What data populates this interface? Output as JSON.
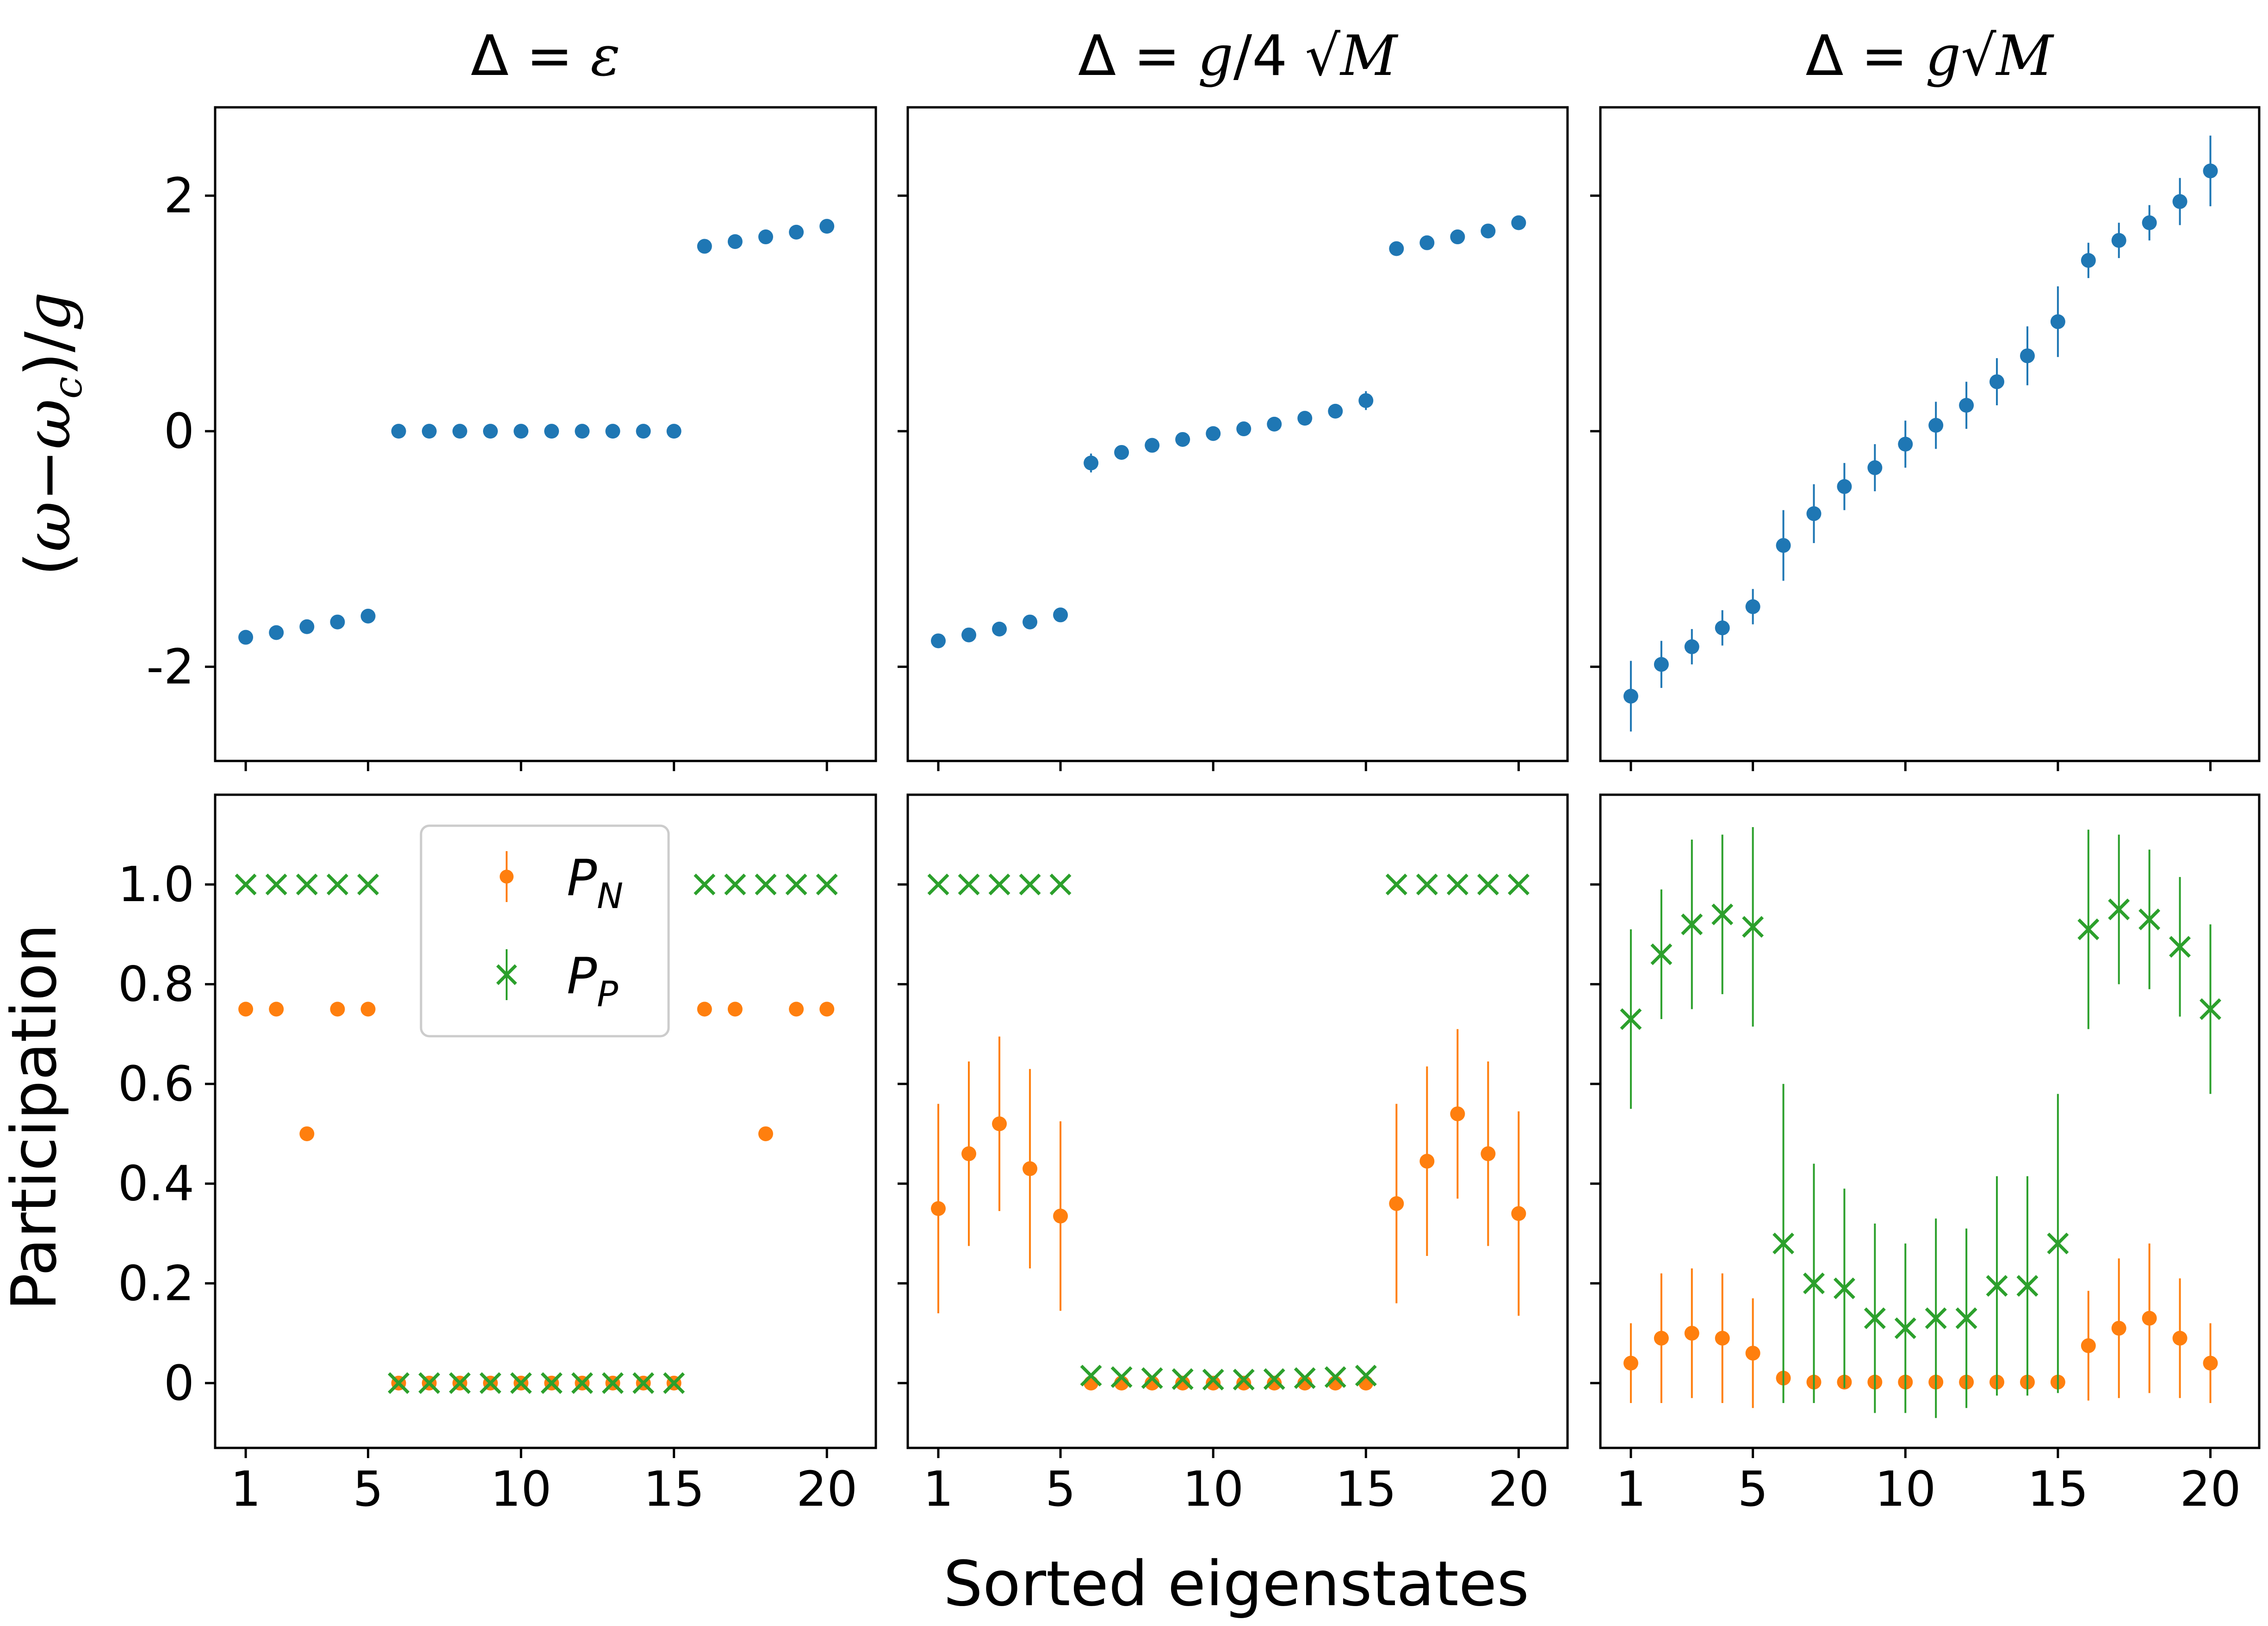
{
  "colors": {
    "blue": "#1f77b4",
    "orange": "#ff7f0e",
    "green": "#2ca02c"
  },
  "figure": {
    "xlabel": "Sorted eigenstates",
    "ylabel_top": "(ω−ω_c)/g",
    "ylabel_bottom": "Participation",
    "column_titles": [
      "Δ = ε",
      "Δ = (g/4)√M",
      "Δ = g√M"
    ],
    "x_ticks": [
      1,
      5,
      10,
      15,
      20
    ],
    "top_y_ticks": [
      2,
      0,
      -2
    ],
    "bottom_y_ticks": [
      "1.0",
      "0.8",
      "0.6",
      "0.4",
      "0.2",
      "0"
    ],
    "legend": [
      "P_N",
      "P_P"
    ]
  },
  "chart_data": [
    {
      "type": "scatter",
      "panel": "top-1",
      "x": [
        1,
        2,
        3,
        4,
        5,
        6,
        7,
        8,
        9,
        10,
        11,
        12,
        13,
        14,
        15,
        16,
        17,
        18,
        19,
        20
      ],
      "y": [
        -1.75,
        -1.71,
        -1.66,
        -1.62,
        -1.57,
        0,
        0,
        0,
        0,
        0,
        0,
        0,
        0,
        0,
        0,
        1.57,
        1.61,
        1.65,
        1.69,
        1.74
      ],
      "err": [
        0,
        0,
        0,
        0,
        0,
        0,
        0,
        0,
        0,
        0,
        0,
        0,
        0,
        0,
        0,
        0,
        0,
        0,
        0,
        0
      ],
      "ylim": [
        -2.8,
        2.75
      ],
      "xlim": [
        0,
        21.6
      ]
    },
    {
      "type": "scatter",
      "panel": "top-2",
      "x": [
        1,
        2,
        3,
        4,
        5,
        6,
        7,
        8,
        9,
        10,
        11,
        12,
        13,
        14,
        15,
        16,
        17,
        18,
        19,
        20
      ],
      "y": [
        -1.78,
        -1.73,
        -1.68,
        -1.62,
        -1.56,
        -0.27,
        -0.18,
        -0.12,
        -0.07,
        -0.02,
        0.02,
        0.06,
        0.11,
        0.17,
        0.26,
        1.55,
        1.6,
        1.65,
        1.7,
        1.77
      ],
      "err": [
        0.03,
        0.03,
        0.03,
        0.03,
        0.03,
        0.08,
        0.05,
        0.04,
        0.03,
        0.03,
        0.03,
        0.03,
        0.04,
        0.05,
        0.08,
        0.03,
        0.03,
        0.03,
        0.03,
        0.03
      ],
      "ylim": [
        -2.8,
        2.75
      ],
      "xlim": [
        0,
        21.6
      ]
    },
    {
      "type": "scatter",
      "panel": "top-3",
      "x": [
        1,
        2,
        3,
        4,
        5,
        6,
        7,
        8,
        9,
        10,
        11,
        12,
        13,
        14,
        15,
        16,
        17,
        18,
        19,
        20
      ],
      "y": [
        -2.25,
        -1.98,
        -1.83,
        -1.67,
        -1.49,
        -0.97,
        -0.7,
        -0.47,
        -0.31,
        -0.11,
        0.05,
        0.22,
        0.42,
        0.64,
        0.93,
        1.45,
        1.62,
        1.77,
        1.95,
        2.21
      ],
      "err": [
        0.3,
        0.2,
        0.15,
        0.15,
        0.15,
        0.3,
        0.25,
        0.2,
        0.2,
        0.2,
        0.2,
        0.2,
        0.2,
        0.25,
        0.3,
        0.15,
        0.15,
        0.15,
        0.2,
        0.3
      ],
      "ylim": [
        -2.8,
        2.75
      ],
      "xlim": [
        0,
        21.6
      ]
    },
    {
      "type": "scatter",
      "panel": "bottom-1",
      "x": [
        1,
        2,
        3,
        4,
        5,
        6,
        7,
        8,
        9,
        10,
        11,
        12,
        13,
        14,
        15,
        16,
        17,
        18,
        19,
        20
      ],
      "series": [
        {
          "name": "P_N",
          "y": [
            0.75,
            0.75,
            0.5,
            0.75,
            0.75,
            0,
            0,
            0,
            0,
            0,
            0,
            0,
            0,
            0,
            0,
            0.75,
            0.75,
            0.5,
            0.75,
            0.75
          ],
          "err": [
            0,
            0,
            0,
            0,
            0,
            0,
            0,
            0,
            0,
            0,
            0,
            0,
            0,
            0,
            0,
            0,
            0,
            0,
            0,
            0
          ]
        },
        {
          "name": "P_P",
          "y": [
            1,
            1,
            1,
            1,
            1,
            0,
            0,
            0,
            0,
            0,
            0,
            0,
            0,
            0,
            0,
            1,
            1,
            1,
            1,
            1
          ],
          "err": [
            0,
            0,
            0,
            0,
            0,
            0,
            0,
            0,
            0,
            0,
            0,
            0,
            0,
            0,
            0,
            0,
            0,
            0,
            0,
            0
          ]
        }
      ],
      "ylim": [
        -0.13,
        1.18
      ],
      "xlim": [
        0,
        21.6
      ]
    },
    {
      "type": "scatter",
      "panel": "bottom-2",
      "x": [
        1,
        2,
        3,
        4,
        5,
        6,
        7,
        8,
        9,
        10,
        11,
        12,
        13,
        14,
        15,
        16,
        17,
        18,
        19,
        20
      ],
      "series": [
        {
          "name": "P_N",
          "y": [
            0.35,
            0.46,
            0.52,
            0.43,
            0.335,
            0,
            0,
            0,
            0,
            0,
            0,
            0,
            0,
            0,
            0,
            0.36,
            0.445,
            0.54,
            0.46,
            0.34
          ],
          "err": [
            0.21,
            0.185,
            0.175,
            0.2,
            0.19,
            0,
            0,
            0,
            0,
            0,
            0,
            0,
            0,
            0,
            0,
            0.2,
            0.19,
            0.17,
            0.185,
            0.205
          ]
        },
        {
          "name": "P_P",
          "y": [
            1,
            1,
            1,
            1,
            1,
            0.015,
            0.012,
            0.01,
            0.008,
            0.007,
            0.007,
            0.008,
            0.01,
            0.012,
            0.015,
            1,
            1,
            1,
            1,
            1
          ],
          "err": [
            0,
            0,
            0,
            0,
            0,
            0,
            0,
            0,
            0,
            0,
            0,
            0,
            0,
            0,
            0,
            0,
            0,
            0,
            0,
            0
          ]
        }
      ],
      "ylim": [
        -0.13,
        1.18
      ],
      "xlim": [
        0,
        21.6
      ]
    },
    {
      "type": "scatter",
      "panel": "bottom-3",
      "x": [
        1,
        2,
        3,
        4,
        5,
        6,
        7,
        8,
        9,
        10,
        11,
        12,
        13,
        14,
        15,
        16,
        17,
        18,
        19,
        20
      ],
      "series": [
        {
          "name": "P_N",
          "y": [
            0.04,
            0.09,
            0.1,
            0.09,
            0.06,
            0.01,
            0.002,
            0.002,
            0.002,
            0.002,
            0.002,
            0.002,
            0.002,
            0.002,
            0.002,
            0.075,
            0.11,
            0.13,
            0.09,
            0.04
          ],
          "err": [
            0.08,
            0.13,
            0.13,
            0.13,
            0.11,
            0.02,
            0.005,
            0.005,
            0.005,
            0.005,
            0.005,
            0.005,
            0.005,
            0.005,
            0.005,
            0.11,
            0.14,
            0.15,
            0.12,
            0.08
          ]
        },
        {
          "name": "P_P",
          "y": [
            0.73,
            0.86,
            0.92,
            0.94,
            0.915,
            0.28,
            0.2,
            0.19,
            0.13,
            0.11,
            0.13,
            0.13,
            0.195,
            0.195,
            0.28,
            0.91,
            0.95,
            0.93,
            0.875,
            0.75
          ],
          "err": [
            0.18,
            0.13,
            0.17,
            0.16,
            0.2,
            0.32,
            0.24,
            0.2,
            0.19,
            0.17,
            0.2,
            0.18,
            0.22,
            0.22,
            0.3,
            0.2,
            0.15,
            0.14,
            0.14,
            0.17
          ]
        }
      ],
      "ylim": [
        -0.13,
        1.18
      ],
      "xlim": [
        0,
        21.6
      ]
    }
  ]
}
